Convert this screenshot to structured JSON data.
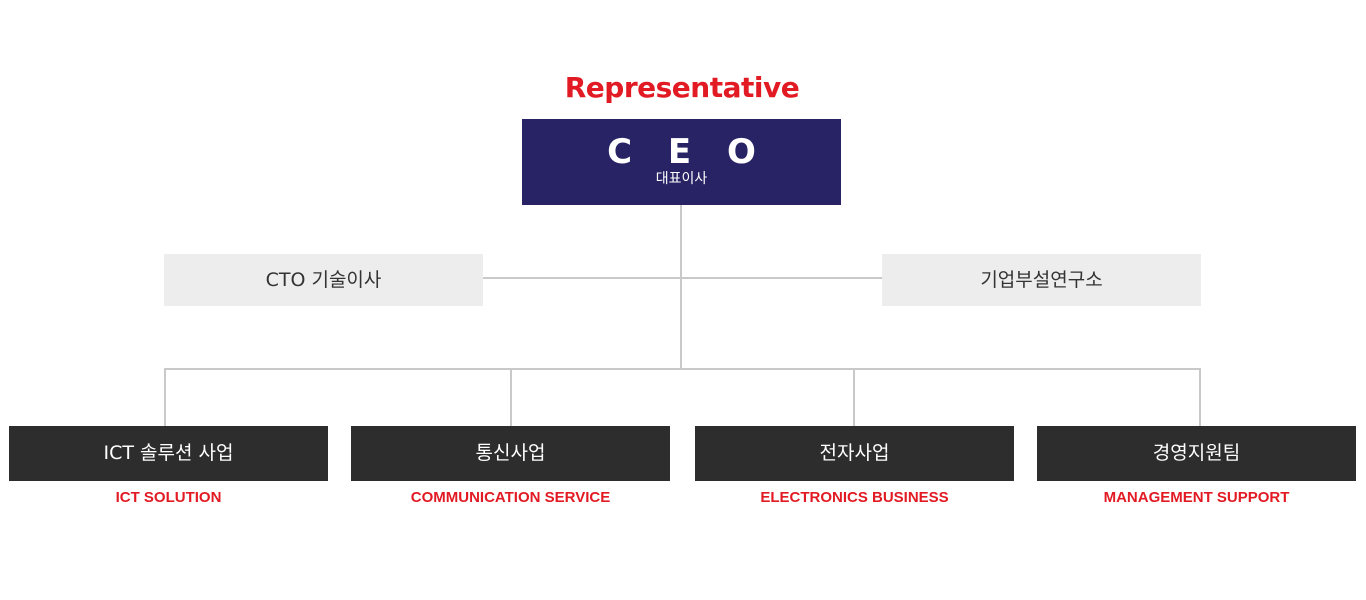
{
  "org": {
    "title": "Representative",
    "ceo": {
      "label_en": "C E O",
      "label_ko": "대표이사"
    },
    "side_left": "CTO 기술이사",
    "side_right": "기업부설연구소",
    "departments": [
      {
        "label": "ICT 솔루션 사업",
        "sub": "ICT SOLUTION"
      },
      {
        "label": "통신사업",
        "sub": "COMMUNICATION SERVICE"
      },
      {
        "label": "전자사업",
        "sub": "ELECTRONICS BUSINESS"
      },
      {
        "label": "경영지원팀",
        "sub": "MANAGEMENT SUPPORT"
      }
    ]
  },
  "colors": {
    "accent_red": "#e21a23",
    "ceo_navy": "#282364",
    "dept_dark": "#2d2d2d",
    "side_gray": "#ededed",
    "connector": "#c9c9c9"
  }
}
